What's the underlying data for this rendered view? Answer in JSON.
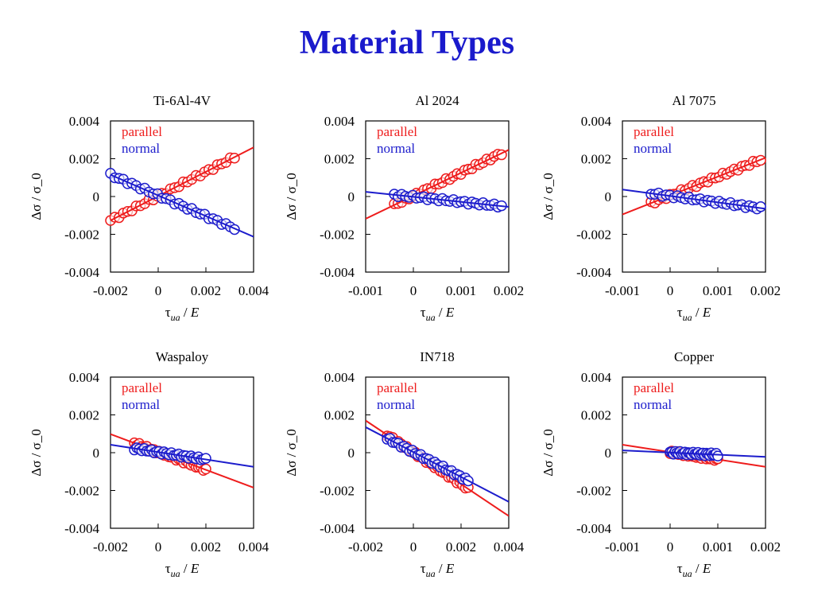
{
  "title": "Material Types",
  "colors": {
    "title": "#1a1acc",
    "parallel": "#ee1c1c",
    "normal": "#1c1ccc"
  },
  "chart_data": [
    {
      "type": "scatter",
      "title": "Ti-6Al-4V",
      "xlabel": "τ_ua / E",
      "ylabel": "Δσ / σ_0",
      "xlim": [
        -0.002,
        0.004
      ],
      "ylim": [
        -0.004,
        0.004
      ],
      "xticks": [
        "-0.002",
        "0",
        "0.002",
        "0.004"
      ],
      "yticks": [
        "0.004",
        "0.002",
        "0",
        "-0.002",
        "-0.004"
      ],
      "legend": [
        "parallel",
        "normal"
      ],
      "legend_position": "top-left",
      "series": [
        {
          "name": "parallel",
          "x_range": [
            -0.002,
            0.0032
          ],
          "fit": [
            [
              -0.002,
              -0.00127
            ],
            [
              0.004,
              0.0026
            ]
          ]
        },
        {
          "name": "normal",
          "x_range": [
            -0.002,
            0.0032
          ],
          "fit": [
            [
              -0.002,
              0.00115
            ],
            [
              0.004,
              -0.00213
            ]
          ]
        }
      ]
    },
    {
      "type": "scatter",
      "title": "Al 2024",
      "xlabel": "τ_ua / E",
      "ylabel": "Δσ / σ_0",
      "xlim": [
        -0.001,
        0.002
      ],
      "ylim": [
        -0.004,
        0.004
      ],
      "xticks": [
        "-0.001",
        "0",
        "0.001",
        "0.002"
      ],
      "yticks": [
        "0.004",
        "0.002",
        "0",
        "-0.002",
        "-0.004"
      ],
      "legend": [
        "parallel",
        "normal"
      ],
      "legend_position": "top-left",
      "series": [
        {
          "name": "parallel",
          "x_range": [
            -0.0004,
            0.00185
          ],
          "fit": [
            [
              -0.001,
              -0.00118
            ],
            [
              0.002,
              0.00247
            ]
          ]
        },
        {
          "name": "normal",
          "x_range": [
            -0.0004,
            0.00185
          ],
          "fit": [
            [
              -0.001,
              0.00025
            ],
            [
              0.002,
              -0.00055
            ]
          ]
        }
      ]
    },
    {
      "type": "scatter",
      "title": "Al 7075",
      "xlabel": "τ_ua / E",
      "ylabel": "Δσ / σ_0",
      "xlim": [
        -0.001,
        0.002
      ],
      "ylim": [
        -0.004,
        0.004
      ],
      "xticks": [
        "-0.001",
        "0",
        "0.001",
        "0.002"
      ],
      "yticks": [
        "0.004",
        "0.002",
        "0",
        "-0.002",
        "-0.004"
      ],
      "legend": [
        "parallel",
        "normal"
      ],
      "legend_position": "top-left",
      "series": [
        {
          "name": "parallel",
          "x_range": [
            -0.0004,
            0.0019
          ],
          "fit": [
            [
              -0.001,
              -0.00095
            ],
            [
              0.002,
              0.00205
            ]
          ]
        },
        {
          "name": "normal",
          "x_range": [
            -0.0004,
            0.0019
          ],
          "fit": [
            [
              -0.001,
              0.00037
            ],
            [
              0.002,
              -0.00065
            ]
          ]
        }
      ]
    },
    {
      "type": "scatter",
      "title": "Waspaloy",
      "xlabel": "τ_ua / E",
      "ylabel": "Δσ / σ_0",
      "xlim": [
        -0.002,
        0.004
      ],
      "ylim": [
        -0.004,
        0.004
      ],
      "xticks": [
        "-0.002",
        "0",
        "0.002",
        "0.004"
      ],
      "yticks": [
        "0.004",
        "0.002",
        "0",
        "-0.002",
        "-0.004"
      ],
      "legend": [
        "parallel",
        "normal"
      ],
      "legend_position": "top-left",
      "series": [
        {
          "name": "parallel",
          "x_range": [
            -0.001,
            0.002
          ],
          "fit": [
            [
              -0.002,
              0.00098
            ],
            [
              0.004,
              -0.00185
            ]
          ]
        },
        {
          "name": "normal",
          "x_range": [
            -0.001,
            0.002
          ],
          "fit": [
            [
              -0.002,
              0.00042
            ],
            [
              0.004,
              -0.00075
            ]
          ]
        }
      ]
    },
    {
      "type": "scatter",
      "title": "IN718",
      "xlabel": "τ_ua / E",
      "ylabel": "Δσ / σ_0",
      "xlim": [
        -0.002,
        0.004
      ],
      "ylim": [
        -0.004,
        0.004
      ],
      "xticks": [
        "-0.002",
        "0",
        "0.002",
        "0.004"
      ],
      "yticks": [
        "0.004",
        "0.002",
        "0",
        "-0.002",
        "-0.004"
      ],
      "legend": [
        "parallel",
        "normal"
      ],
      "legend_position": "top-left",
      "series": [
        {
          "name": "parallel",
          "x_range": [
            -0.0011,
            0.0023
          ],
          "fit": [
            [
              -0.002,
              0.0017
            ],
            [
              0.004,
              -0.00335
            ]
          ]
        },
        {
          "name": "normal",
          "x_range": [
            -0.0011,
            0.0023
          ],
          "fit": [
            [
              -0.002,
              0.00135
            ],
            [
              0.004,
              -0.0026
            ]
          ]
        }
      ]
    },
    {
      "type": "scatter",
      "title": "Copper",
      "xlabel": "τ_ua / E",
      "ylabel": "Δσ / σ_0",
      "xlim": [
        -0.001,
        0.002
      ],
      "ylim": [
        -0.004,
        0.004
      ],
      "xticks": [
        "-0.001",
        "0",
        "0.001",
        "0.002"
      ],
      "yticks": [
        "0.004",
        "0.002",
        "0",
        "-0.002",
        "-0.004"
      ],
      "legend": [
        "parallel",
        "normal"
      ],
      "legend_position": "top-left",
      "series": [
        {
          "name": "parallel",
          "x_range": [
            0,
            0.001
          ],
          "fit": [
            [
              -0.001,
              0.00042
            ],
            [
              0.002,
              -0.00075
            ]
          ]
        },
        {
          "name": "normal",
          "x_range": [
            0,
            0.001
          ],
          "fit": [
            [
              -0.001,
              0.00012
            ],
            [
              0.002,
              -0.00022
            ]
          ]
        }
      ]
    }
  ]
}
